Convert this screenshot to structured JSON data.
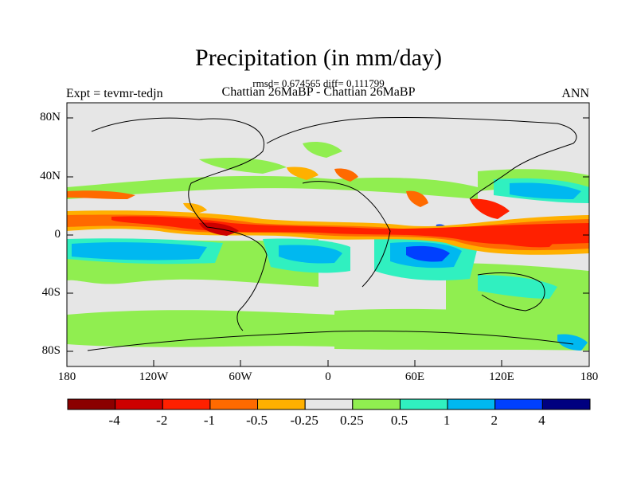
{
  "title": "Precipitation (in mm/day)",
  "stats": "rmsd= 0.674565 diff= 0.111799",
  "experiment": "Expt = tevmr-tedjn",
  "case": "Chattian  26MaBP - Chattian  26MaBP",
  "season": "ANN",
  "lat_ticks": [
    "80N",
    "40N",
    "0",
    "40S",
    "80S"
  ],
  "lon_ticks": [
    "180",
    "120W",
    "60W",
    "0",
    "60E",
    "120E",
    "180"
  ],
  "colorbar": {
    "colors": [
      "#8b0000",
      "#cd0000",
      "#ff2000",
      "#ff6a00",
      "#ffb000",
      "#e6e6e6",
      "#90ee50",
      "#30f0c0",
      "#00b8f0",
      "#0040ff",
      "#000080"
    ],
    "labels": [
      "-4",
      "-2",
      "-1",
      "-0.5",
      "-0.25",
      "0.25",
      "0.5",
      "1",
      "2",
      "4"
    ]
  }
}
